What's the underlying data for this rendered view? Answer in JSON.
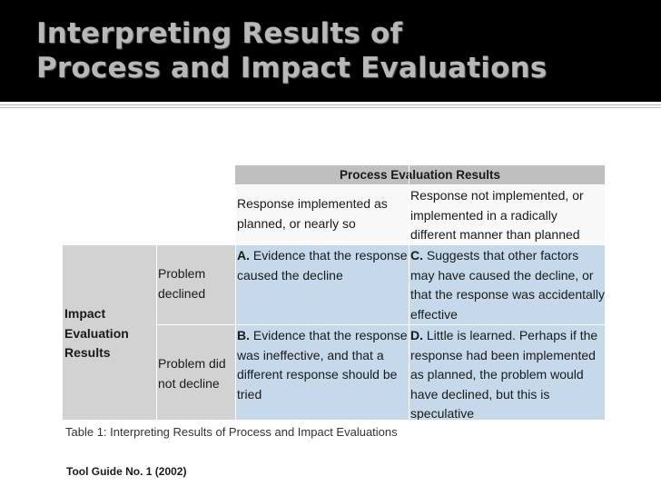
{
  "slide": {
    "title_line1": "Interpreting Results of",
    "title_line2": "Process and Impact Evaluations"
  },
  "table": {
    "header": "Process Evaluation Results",
    "col1_header": "Response implemented as planned, or nearly so",
    "col2_header": "Response not implemented, or implemented in a radically different manner than planned",
    "row_group": "Impact Evaluation Results",
    "row1_label": "Problem declined",
    "row2_label": "Problem did not decline",
    "cells": {
      "a_letter": "A.",
      "a_text": " Evidence that the response caused the decline",
      "c_letter": "C.",
      "c_text": " Suggests that other factors may have caused the decline, or that the response was accidentally effective",
      "b_letter": "B.",
      "b_text": " Evidence that the response was ineffective, and that a different response should be tried",
      "d_letter": "D.",
      "d_text": " Little is learned. Perhaps if the response had been implemented as planned, the problem would have declined, but this is speculative"
    },
    "caption": "Table 1: Interpreting Results of Process and Impact Evaluations"
  },
  "footer": {
    "source": "Tool Guide No. 1 (2002)"
  },
  "colors": {
    "title_bg": "#000000",
    "title_text": "#b8b8b8",
    "header_gray": "#bfbfbf",
    "label_gray": "#d2d2d2",
    "result_blue": "#c6d9ea"
  }
}
